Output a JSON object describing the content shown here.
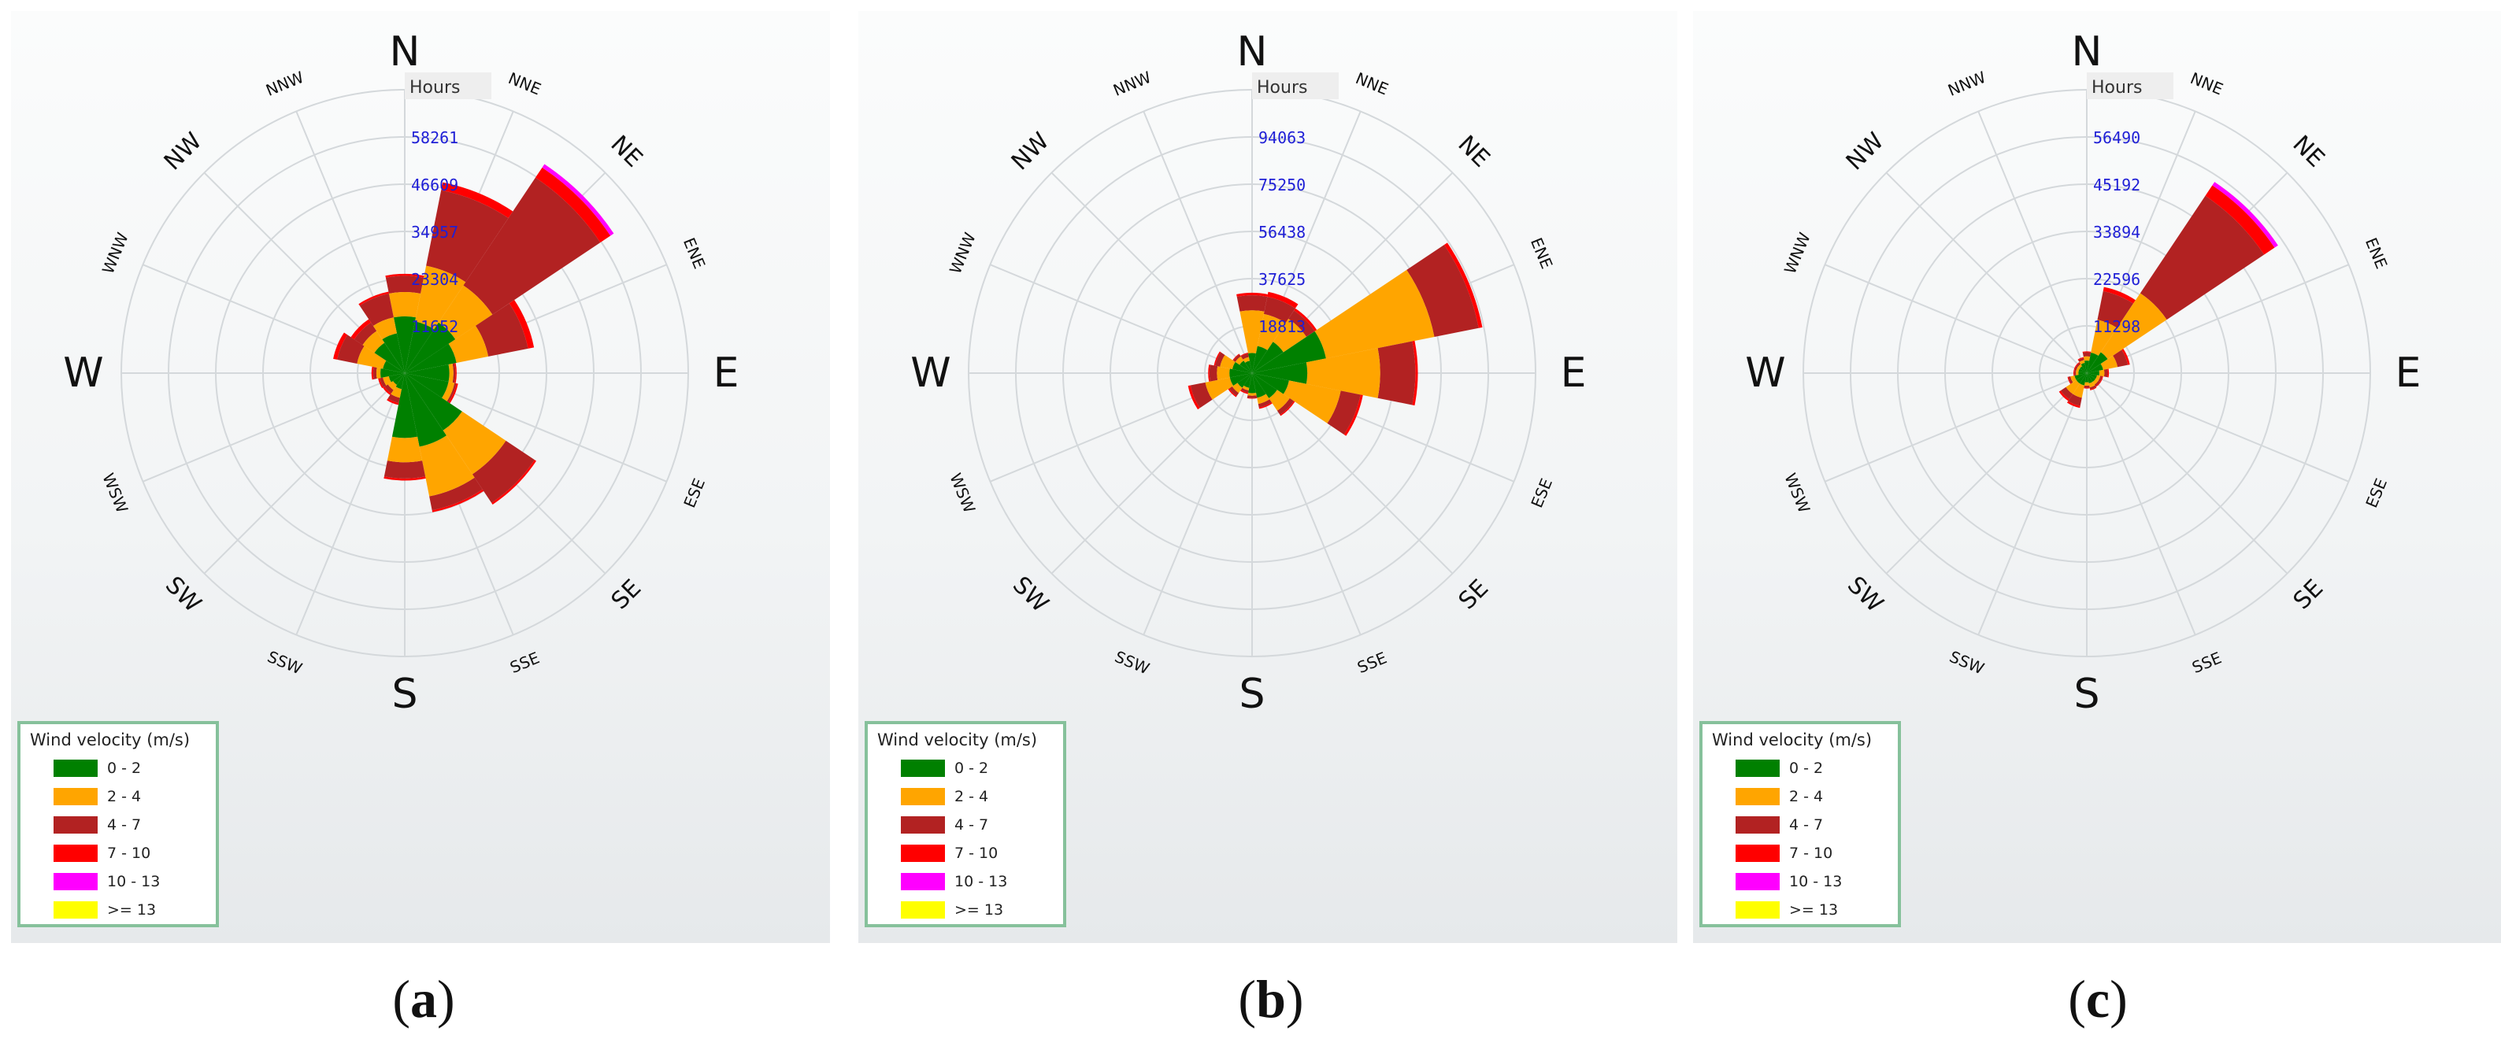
{
  "chart_data": [
    {
      "panel": "(a)",
      "type": "windrose",
      "directions": [
        "N",
        "NNE",
        "NE",
        "ENE",
        "E",
        "ESE",
        "SE",
        "SSE",
        "S",
        "SSW",
        "SW",
        "WSW",
        "W",
        "WNW",
        "NW",
        "NNW"
      ],
      "radial_unit": "Hours",
      "radial_ticks": [
        11652,
        23304,
        34957,
        46609,
        58261
      ],
      "rmax": 69913,
      "bins": [
        "0 - 2",
        "2 - 4",
        "4 - 7",
        "7 - 10",
        "10 - 13",
        ">= 13"
      ],
      "cumulative_by_direction": [
        [
          14000,
          20000,
          24000,
          24500,
          24500,
          24500
        ],
        [
          13000,
          27000,
          46000,
          48000,
          48000,
          48000
        ],
        [
          15000,
          26000,
          58000,
          61000,
          62000,
          62000
        ],
        [
          13000,
          21000,
          31000,
          32500,
          32500,
          32500
        ],
        [
          11000,
          12000,
          12500,
          12800,
          12800,
          12800
        ],
        [
          11000,
          12500,
          13000,
          13400,
          13400,
          13400
        ],
        [
          17000,
          30000,
          38500,
          39000,
          39000,
          39000
        ],
        [
          18500,
          31000,
          34500,
          35000,
          35000,
          35000
        ],
        [
          16000,
          22000,
          26000,
          26500,
          26500,
          26500
        ],
        [
          4000,
          6200,
          7500,
          8000,
          8000,
          8000
        ],
        [
          3500,
          5000,
          6000,
          6500,
          6500,
          6500
        ],
        [
          4000,
          5500,
          6300,
          6700,
          6700,
          6700
        ],
        [
          6000,
          7000,
          7800,
          8200,
          8200,
          8200
        ],
        [
          5500,
          12000,
          17000,
          18000,
          18000,
          18000
        ],
        [
          9000,
          12500,
          15000,
          16000,
          16000,
          16000
        ],
        [
          10000,
          14000,
          20000,
          20500,
          20500,
          20500
        ]
      ]
    },
    {
      "panel": "(b)",
      "type": "windrose",
      "directions": [
        "N",
        "NNE",
        "NE",
        "ENE",
        "E",
        "ESE",
        "SE",
        "SSE",
        "S",
        "SSW",
        "SW",
        "WSW",
        "W",
        "WNW",
        "NW",
        "NNW"
      ],
      "radial_unit": "Hours",
      "radial_ticks": [
        18813,
        37625,
        56438,
        75250,
        94063
      ],
      "rmax": 112875,
      "bins": [
        "0 - 2",
        "2 - 4",
        "4 - 7",
        "7 - 10",
        "10 - 13",
        ">= 13"
      ],
      "cumulative_by_direction": [
        [
          8000,
          25000,
          31000,
          32000,
          32000,
          32000
        ],
        [
          11000,
          24000,
          31000,
          33000,
          33000,
          33000
        ],
        [
          15000,
          26000,
          30000,
          31000,
          31000,
          31000
        ],
        [
          30000,
          74000,
          92000,
          93500,
          93500,
          93500
        ],
        [
          22000,
          51000,
          65000,
          66000,
          66000,
          66000
        ],
        [
          15000,
          36000,
          44000,
          45000,
          45000,
          45000
        ],
        [
          12000,
          18000,
          20000,
          20500,
          20500,
          20500
        ],
        [
          10000,
          12500,
          14000,
          14500,
          14500,
          14500
        ],
        [
          8000,
          9000,
          10000,
          10200,
          10200,
          10200
        ],
        [
          6000,
          7000,
          8000,
          8500,
          8500,
          8500
        ],
        [
          7000,
          9500,
          11000,
          11500,
          11500,
          11500
        ],
        [
          9000,
          19000,
          25000,
          26000,
          26000,
          26000
        ],
        [
          9000,
          14000,
          17000,
          17500,
          17500,
          17500
        ],
        [
          8000,
          13000,
          15000,
          15500,
          15500,
          15500
        ],
        [
          6000,
          8000,
          9000,
          9300,
          9300,
          9300
        ],
        [
          5000,
          6500,
          8000,
          8300,
          8300,
          8300
        ]
      ]
    },
    {
      "panel": "(c)",
      "type": "windrose",
      "directions": [
        "N",
        "NNE",
        "NE",
        "ENE",
        "E",
        "ESE",
        "SE",
        "SSE",
        "S",
        "SSW",
        "SW",
        "WSW",
        "W",
        "WNW",
        "NW",
        "NNW"
      ],
      "radial_unit": "Hours",
      "radial_ticks": [
        11298,
        22596,
        33894,
        45192,
        56490
      ],
      "rmax": 67788,
      "bins": [
        "0 - 2",
        "2 - 4",
        "4 - 7",
        "7 - 10",
        "10 - 13",
        ">= 13"
      ],
      "cumulative_by_direction": [
        [
          3000,
          4000,
          5000,
          5200,
          5200,
          5200
        ],
        [
          5000,
          13000,
          20000,
          21000,
          21000,
          21000
        ],
        [
          6000,
          23000,
          51000,
          54000,
          55000,
          55000
        ],
        [
          4000,
          7500,
          10000,
          10500,
          10500,
          10500
        ],
        [
          3000,
          4200,
          5000,
          5300,
          5300,
          5300
        ],
        [
          2500,
          3300,
          3800,
          4000,
          4000,
          4000
        ],
        [
          2500,
          3300,
          3800,
          4000,
          4000,
          4000
        ],
        [
          2500,
          3500,
          4000,
          4200,
          4200,
          4200
        ],
        [
          2200,
          3000,
          3500,
          3700,
          3700,
          3700
        ],
        [
          3000,
          6000,
          8000,
          8500,
          8500,
          8500
        ],
        [
          3000,
          6000,
          7500,
          8000,
          8000,
          8000
        ],
        [
          3000,
          4000,
          4500,
          4700,
          4700,
          4700
        ],
        [
          2000,
          2600,
          3000,
          3200,
          3200,
          3200
        ],
        [
          2000,
          2600,
          3000,
          3200,
          3200,
          3200
        ],
        [
          2000,
          2600,
          3000,
          3200,
          3200,
          3200
        ],
        [
          2500,
          3200,
          3700,
          3900,
          3900,
          3900
        ]
      ]
    }
  ],
  "legend": {
    "title": "Wind velocity (m/s)",
    "items": [
      {
        "label": "0 - 2",
        "color": "#008000"
      },
      {
        "label": "2 - 4",
        "color": "#ffa500"
      },
      {
        "label": "4 - 7",
        "color": "#b22222"
      },
      {
        "label": "7 - 10",
        "color": "#ff0000"
      },
      {
        "label": "10 - 13",
        "color": "#ff00ff"
      },
      {
        "label": ">= 13",
        "color": "#ffff00"
      }
    ]
  },
  "panels": [
    {
      "label": "a"
    },
    {
      "label": "b"
    },
    {
      "label": "c"
    }
  ],
  "colors": {
    "grid": "#d4d8db",
    "tick_text": "#1f1fd6",
    "cardinal_text": "#111111"
  }
}
